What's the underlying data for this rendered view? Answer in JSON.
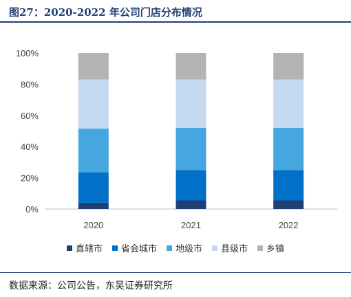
{
  "header": {
    "title": "图27：2020-2022 年公司门店分布情况"
  },
  "footer": {
    "source": "数据来源：公司公告，东吴证券研究所"
  },
  "chart_data": {
    "type": "bar",
    "stacked": true,
    "percent": true,
    "categories": [
      "2020",
      "2021",
      "2022"
    ],
    "series": [
      {
        "name": "直辖市",
        "color": "#1f3f74",
        "values": [
          4,
          5.5,
          5.5
        ]
      },
      {
        "name": "省会城市",
        "color": "#0070c8",
        "values": [
          19.5,
          19.5,
          19.5
        ]
      },
      {
        "name": "地级市",
        "color": "#45a6e0",
        "values": [
          28,
          27,
          27
        ]
      },
      {
        "name": "县级市",
        "color": "#c5d9f1",
        "values": [
          31.5,
          31,
          31
        ]
      },
      {
        "name": "乡镇",
        "color": "#b3b3b3",
        "values": [
          17,
          17,
          17
        ]
      }
    ],
    "yticks": [
      "0%",
      "20%",
      "40%",
      "60%",
      "80%",
      "100%"
    ],
    "ylim": [
      0,
      100
    ],
    "legend_position": "bottom"
  }
}
